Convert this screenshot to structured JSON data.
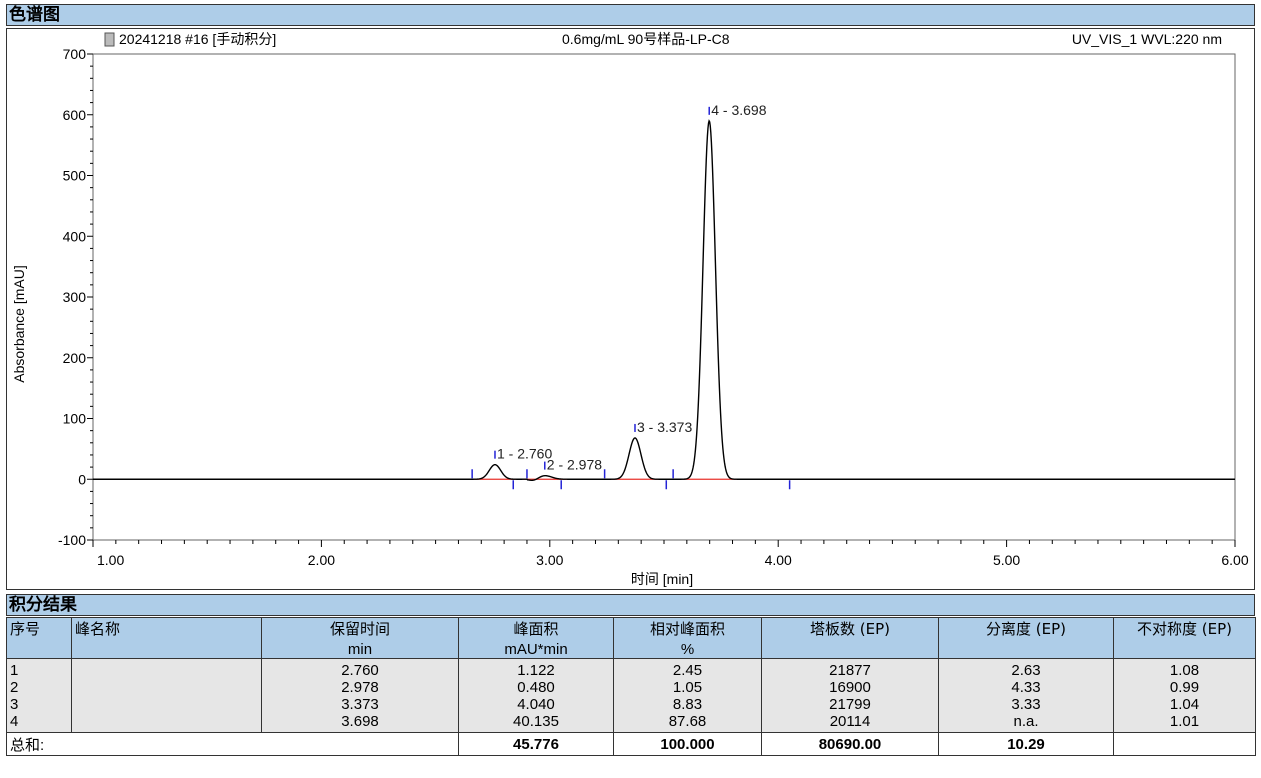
{
  "headers": {
    "chart": "色谱图",
    "results": "积分结果"
  },
  "chart_data": {
    "type": "line",
    "info_left": "20241218 #16 [手动积分]",
    "info_center": "0.6mg/mL 90号样品-LP-C8",
    "info_right": "UV_VIS_1 WVL:220 nm",
    "xlabel": "时间 [min]",
    "ylabel": "Absorbance [mAU]",
    "xlim": [
      1.0,
      6.0
    ],
    "ylim": [
      -100,
      700
    ],
    "x_ticks": [
      "1.00",
      "2.00",
      "3.00",
      "4.00",
      "5.00",
      "6.00"
    ],
    "y_ticks": [
      "-100",
      "0",
      "100",
      "200",
      "300",
      "400",
      "500",
      "600",
      "700"
    ],
    "baseline": [
      1.0,
      2.55,
      0,
      6.0,
      0
    ],
    "peaks": [
      {
        "label": "1 - 2.760",
        "rt": 2.76,
        "height": 24,
        "width": 0.025
      },
      {
        "label": "2 - 2.978",
        "rt": 2.978,
        "height": 6,
        "width": 0.03
      },
      {
        "label": "3 - 3.373",
        "rt": 3.373,
        "height": 68,
        "width": 0.026
      },
      {
        "label": "4 - 3.698",
        "rt": 3.698,
        "height": 590,
        "width": 0.027
      }
    ],
    "integration_marks": [
      {
        "x": 2.66,
        "dir": "up"
      },
      {
        "x": 2.84,
        "dir": "down"
      },
      {
        "x": 2.9,
        "dir": "up"
      },
      {
        "x": 3.05,
        "dir": "down"
      },
      {
        "x": 3.24,
        "dir": "up"
      },
      {
        "x": 3.51,
        "dir": "down"
      },
      {
        "x": 3.54,
        "dir": "up"
      },
      {
        "x": 4.05,
        "dir": "down"
      }
    ],
    "table": {
      "columns": [
        {
          "name": "序号",
          "unit": ""
        },
        {
          "name": "峰名称",
          "unit": ""
        },
        {
          "name": "保留时间",
          "unit": "min"
        },
        {
          "name": "峰面积",
          "unit": "mAU*min"
        },
        {
          "name": "相对峰面积",
          "unit": "%"
        },
        {
          "name": "塔板数 (EP)",
          "unit": ""
        },
        {
          "name": "分离度 (EP)",
          "unit": ""
        },
        {
          "name": "不对称度 (EP)",
          "unit": ""
        }
      ],
      "rows": [
        [
          "1",
          "",
          "2.760",
          "1.122",
          "2.45",
          "21877",
          "2.63",
          "1.08"
        ],
        [
          "2",
          "",
          "2.978",
          "0.480",
          "1.05",
          "16900",
          "4.33",
          "0.99"
        ],
        [
          "3",
          "",
          "3.373",
          "4.040",
          "8.83",
          "21799",
          "3.33",
          "1.04"
        ],
        [
          "4",
          "",
          "3.698",
          "40.135",
          "87.68",
          "20114",
          "n.a.",
          "1.01"
        ]
      ],
      "total": [
        "总和:",
        "",
        "",
        "45.776",
        "100.000",
        "80690.00",
        "10.29",
        ""
      ]
    }
  }
}
